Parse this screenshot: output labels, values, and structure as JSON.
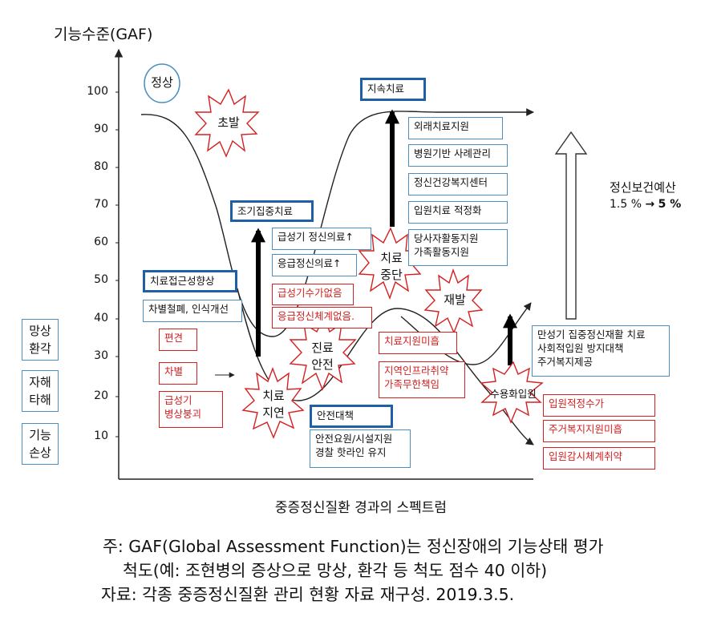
{
  "y_axis": {
    "title": "기능수준(GAF)",
    "ticks": [
      "100",
      "90",
      "80",
      "70",
      "60",
      "50",
      "40",
      "30",
      "20",
      "10"
    ]
  },
  "x_axis": {
    "title": "중증정신질환 경과의 스펙트럼"
  },
  "left_panel": {
    "symptoms": [
      {
        "line1": "망상",
        "line2": "환각"
      },
      {
        "line1": "자해",
        "line2": "타해"
      },
      {
        "line1": "기능",
        "line2": "손상"
      }
    ],
    "access_box": "치료접근성향상",
    "stigma_box": "차별철폐, 인식개선",
    "prejudice": "편견",
    "discrimination": "차별",
    "acute": {
      "line1": "급성기",
      "line2": "병상붕괴"
    }
  },
  "labels": {
    "normal": "정상",
    "onset": "초발",
    "treatment_delay": {
      "line1": "치료",
      "line2": "지연"
    },
    "care_delay": {
      "line1": "진료",
      "line2": "안전"
    },
    "treatment_stop": {
      "line1": "치료",
      "line2": "중단"
    },
    "relapse": "재발",
    "institutionalization": "수용화입원"
  },
  "early": {
    "title": "조기집중치료",
    "items": [
      "급성기 정신의료↑",
      "응급정신의료↑"
    ],
    "gaps": [
      "급성기수가없음",
      "응급정신체계없음."
    ]
  },
  "safety": {
    "title": "안전대책",
    "body": {
      "line1": "안전요원/시설지원",
      "line2": "경찰 핫라인 유지"
    }
  },
  "continuous": {
    "title": "지속치료",
    "items": [
      "외래치료지원",
      "병원기반 사례관리",
      "정신건강복지센터",
      "입원치료 적정화"
    ],
    "combined": {
      "line1": "당사자활동지원",
      "line2": "가족활동지원"
    },
    "gaps": [
      "치료지원미흡"
    ],
    "infra": {
      "line1": "지역인프라취약",
      "line2": "가족무한책임"
    }
  },
  "chronic": {
    "body": {
      "line1": "만성기 집중정신재활 치료",
      "line2": "사회적입원 방지대책",
      "line3": "주거복지제공"
    },
    "gaps": [
      "입원적정수가",
      "주거복지지원미흡",
      "입원감시체계취약"
    ]
  },
  "budget": {
    "label": "정신보건예산",
    "from": "1.5 %",
    "arrow": "→",
    "to": "5 %"
  },
  "notes": {
    "note_line1": "주: GAF(Global Assessment Function)는 정신장애의 기능상태 평가",
    "note_line2": "척도(예: 조현병의 증상으로 망상, 환각 등 척도 점수 40 이하)",
    "source_line": "자료: 각종 중증정신질환 관리 현황 자료 재구성. 2019.3.5."
  },
  "colors": {
    "frame_blue": "#1f5fa6",
    "box_blue": "#4a8fbf",
    "alert_red": "#d42020"
  }
}
